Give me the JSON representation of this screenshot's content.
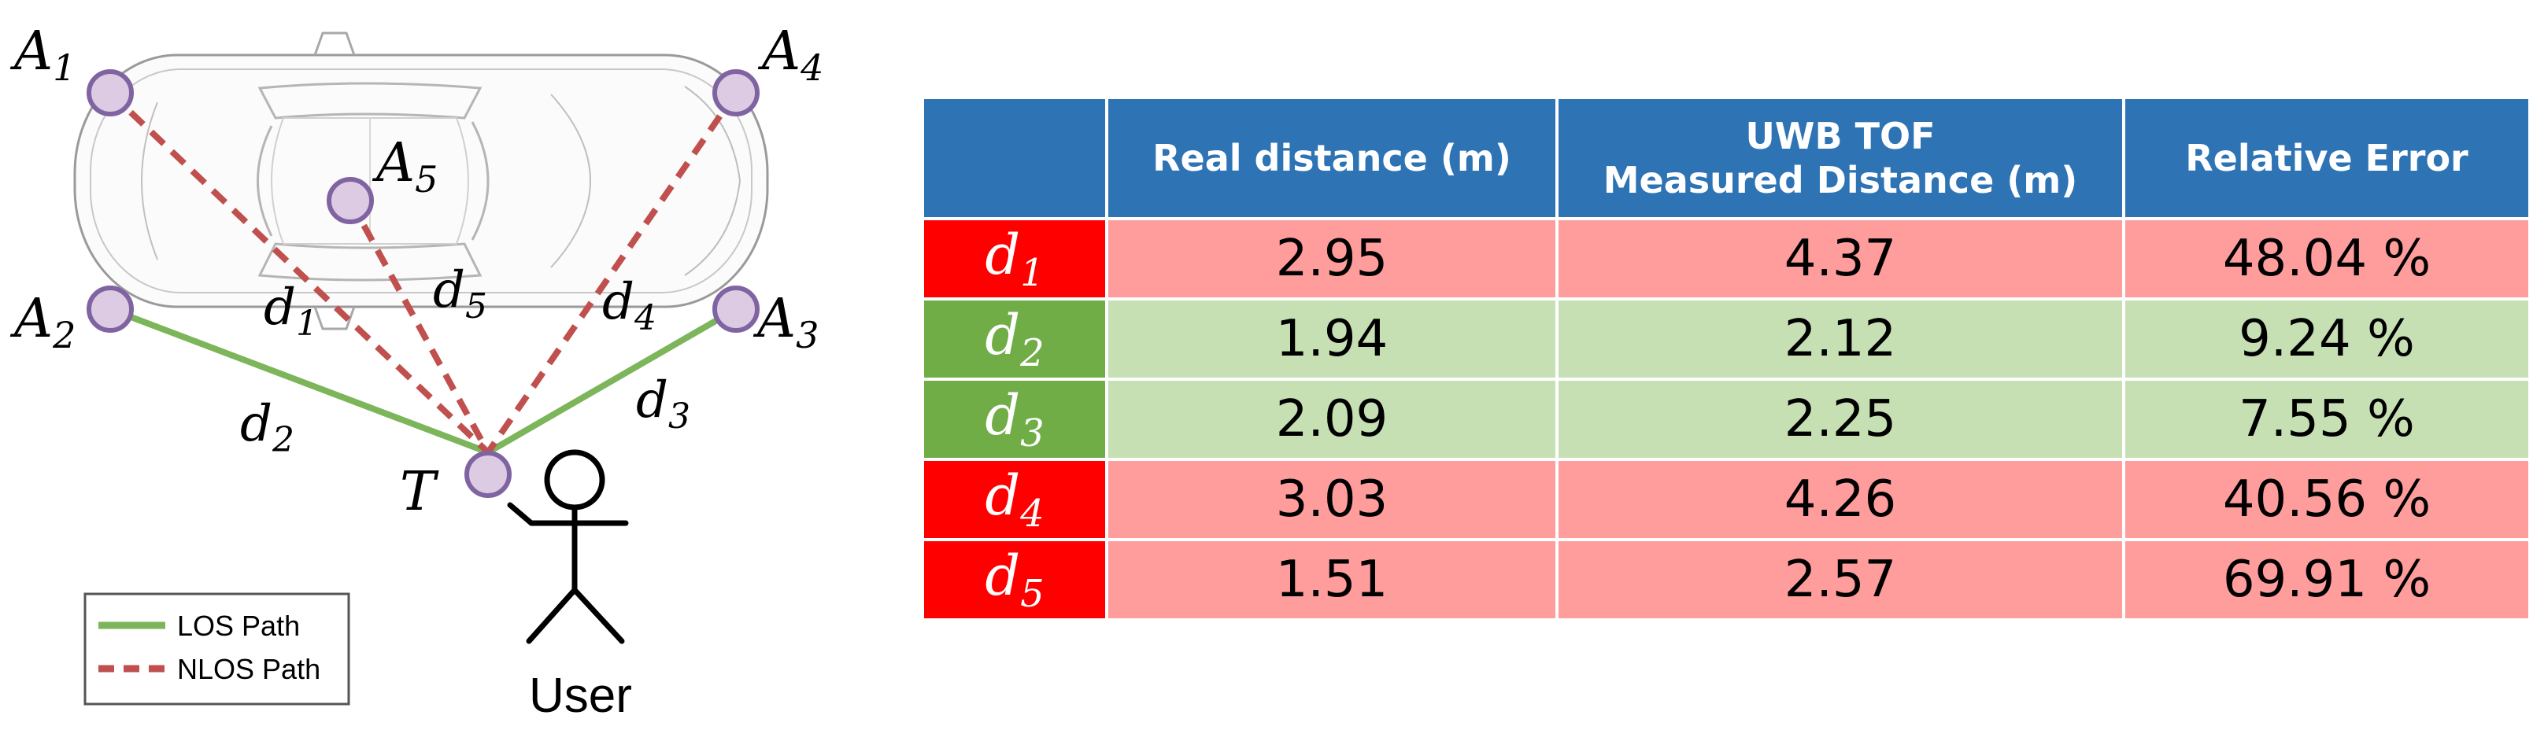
{
  "diagram": {
    "anchors": [
      {
        "id": "A1",
        "base": "A",
        "sub": "1"
      },
      {
        "id": "A2",
        "base": "A",
        "sub": "2"
      },
      {
        "id": "A3",
        "base": "A",
        "sub": "3"
      },
      {
        "id": "A4",
        "base": "A",
        "sub": "4"
      },
      {
        "id": "A5",
        "base": "A",
        "sub": "5"
      }
    ],
    "tag_label": "T",
    "distance_labels": [
      {
        "base": "d",
        "sub": "1"
      },
      {
        "base": "d",
        "sub": "2"
      },
      {
        "base": "d",
        "sub": "3"
      },
      {
        "base": "d",
        "sub": "4"
      },
      {
        "base": "d",
        "sub": "5"
      }
    ],
    "user_label": "User",
    "legend": {
      "los": "LOS Path",
      "nlos": "NLOS Path"
    },
    "colors": {
      "los": "#7cb55a",
      "nlos": "#c0504d",
      "node_fill": "#dccbe3",
      "node_stroke": "#8064a2"
    }
  },
  "table": {
    "headers": [
      "",
      "Real distance (m)",
      "UWB TOF",
      "Measured Distance (m)",
      "Relative Error"
    ],
    "rows": [
      {
        "base": "d",
        "sub": "1",
        "real": "2.95",
        "measured": "4.37",
        "error": "48.04 %",
        "status": "error"
      },
      {
        "base": "d",
        "sub": "2",
        "real": "1.94",
        "measured": "2.12",
        "error": "9.24 %",
        "status": "ok"
      },
      {
        "base": "d",
        "sub": "3",
        "real": "2.09",
        "measured": "2.25",
        "error": "7.55 %",
        "status": "ok"
      },
      {
        "base": "d",
        "sub": "4",
        "real": "3.03",
        "measured": "4.26",
        "error": "40.56 %",
        "status": "error"
      },
      {
        "base": "d",
        "sub": "5",
        "real": "1.51",
        "measured": "2.57",
        "error": "69.91 %",
        "status": "error"
      }
    ],
    "colors": {
      "header": "#2e74b5",
      "error_cell": "#ff9c9c",
      "error_label": "#ff0000",
      "ok_cell": "#c6e0b4",
      "ok_label": "#70ad47"
    }
  }
}
